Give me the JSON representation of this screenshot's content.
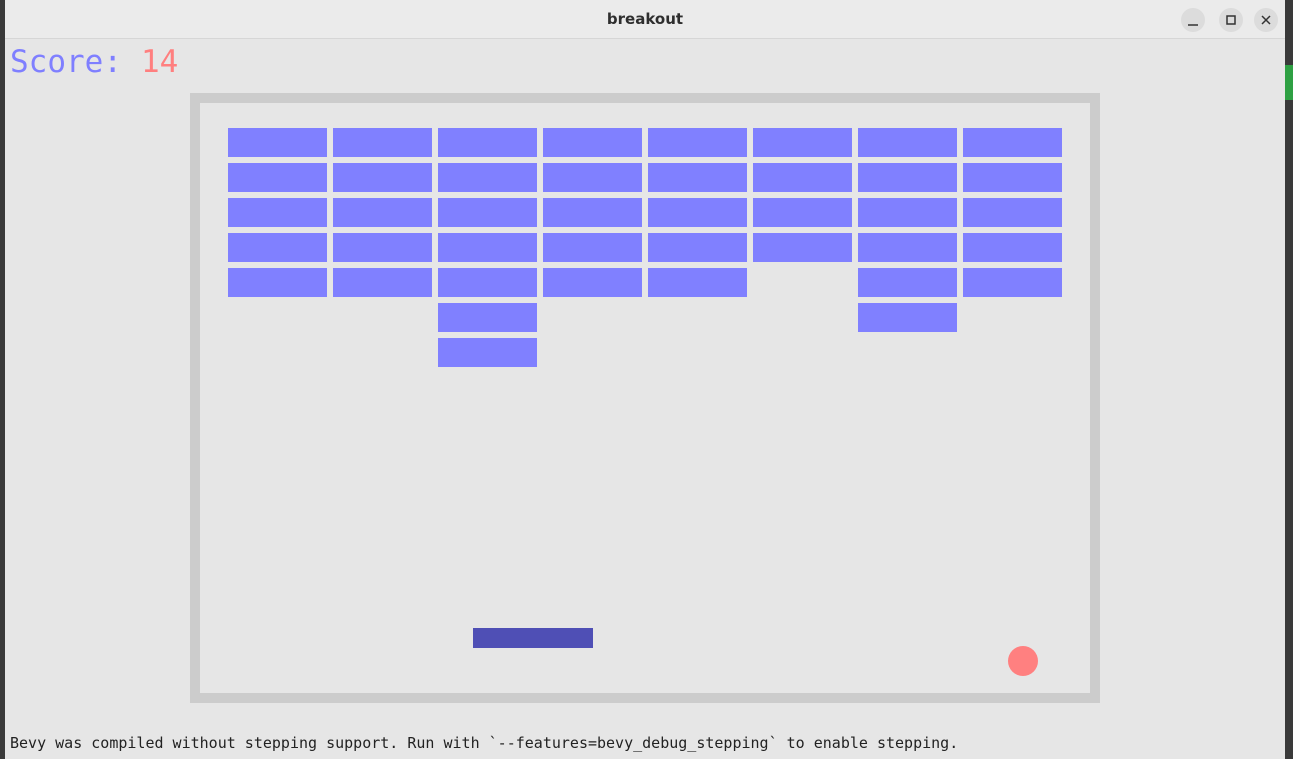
{
  "window": {
    "title": "breakout"
  },
  "hud": {
    "score_label": "Score:",
    "score_value": 14
  },
  "footer": {
    "message": "Bevy was compiled without stepping support. Run with `--features=bevy_debug_stepping` to enable stepping."
  }
}
